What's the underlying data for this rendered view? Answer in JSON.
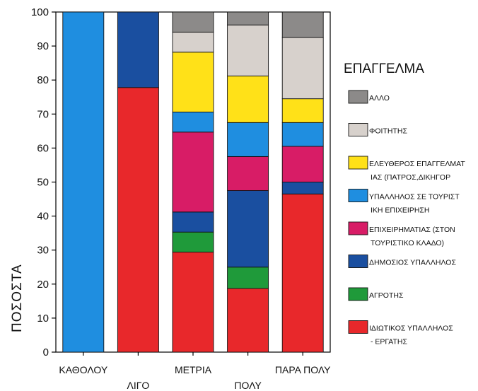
{
  "chart_data": {
    "type": "bar",
    "stacked": true,
    "ylabel": "ΠΟΣΟΣΤΑ",
    "xlabel": "",
    "ylim": [
      0,
      100
    ],
    "yticks": [
      0,
      10,
      20,
      30,
      40,
      50,
      60,
      70,
      80,
      90,
      100
    ],
    "grid": false,
    "legend_title": "ΕΠΑΓΓΕΛΜΑ",
    "legend_position": "right",
    "categories": [
      "ΚΑΘΟΛΟΥ",
      "ΛΙΓΟ",
      "ΜΕΤΡΙΑ",
      "ΠΟΛΥ",
      "ΠΑΡΑ ΠΟΛΥ"
    ],
    "series": [
      {
        "name": "ΙΔΙΩΤΙΚΟΣ ΥΠΑΛΛΗΛΟΣ - ΕΡΓΑΤΗΣ",
        "legend_lines": [
          "ΙΔΙΩΤΙΚΟΣ ΥΠΑΛΛΗΛΟΣ",
          "- ΕΡΓΑΤΗΣ"
        ],
        "color": "#e8282b",
        "values": [
          0,
          77.8,
          29.4,
          18.7,
          46.5
        ]
      },
      {
        "name": "ΑΓΡΟΤΗΣ",
        "legend_lines": [
          "ΑΓΡΟΤΗΣ"
        ],
        "color": "#1f9a3a",
        "values": [
          0,
          0,
          5.9,
          6.3,
          0
        ]
      },
      {
        "name": "ΔΗΜΟΣΙΟΣ ΥΠΑΛΛΗΛΟΣ",
        "legend_lines": [
          "ΔΗΜΟΣΙΟΣ ΥΠΑΛΛΗΛΟΣ"
        ],
        "color": "#1a4fa0",
        "values": [
          0,
          22.2,
          5.9,
          22.5,
          3.5
        ]
      },
      {
        "name": "ΕΠΙΧΕΙΡΗΜΑΤΙΑΣ (ΣΤΟΝ ΤΟΥΡΙΣΤΙΚΟ ΚΛΑΔΟ)",
        "legend_lines": [
          "ΕΠΙΧΕΙΡΗΜΑΤΙΑΣ (ΣΤΟΝ",
          "ΤΟΥΡΙΣΤΙΚΟ ΚΛΑΔΟ)"
        ],
        "color": "#d81c66",
        "values": [
          0,
          0,
          23.5,
          10.0,
          10.5
        ]
      },
      {
        "name": "ΥΠΑΛΛΗΛΟΣ ΣΕ ΤΟΥΡΙΣΤΙΚΗ ΕΠΙΧΕΙΡΗΣΗ",
        "legend_lines": [
          "ΥΠΑΛΛΗΛΟΣ ΣΕ ΤΟΥΡΙΣΤ",
          "ΙΚΗ ΕΠΙΧΕΙΡΗΣΗ"
        ],
        "color": "#1f8ee0",
        "values": [
          100,
          0,
          5.9,
          10.0,
          7.0
        ]
      },
      {
        "name": "ΕΛΕΥΘΕΡΟΣ ΕΠΑΓΓΕΛΜΑΤΙΑΣ (ΠΑΤΡΟΣ,ΔΙΚΗΓΟΡ",
        "legend_lines": [
          "ΕΛΕΥΘΕΡΟΣ ΕΠΑΓΓΕΛΜΑΤ",
          "ΙΑΣ (ΠΑΤΡΟΣ,ΔΙΚΗΓΟΡ"
        ],
        "color": "#ffe118",
        "values": [
          0,
          0,
          17.6,
          13.7,
          7.0
        ]
      },
      {
        "name": "ΦΟΙΤΗΤΗΣ",
        "legend_lines": [
          "ΦΟΙΤΗΤΗΣ"
        ],
        "color": "#d7d1cc",
        "values": [
          0,
          0,
          5.9,
          15.0,
          18.0
        ]
      },
      {
        "name": "ΑΛΛΟ",
        "legend_lines": [
          "ΑΛΛΟ"
        ],
        "color": "#8c8a89",
        "values": [
          0,
          0,
          5.9,
          3.8,
          7.5
        ]
      }
    ]
  }
}
